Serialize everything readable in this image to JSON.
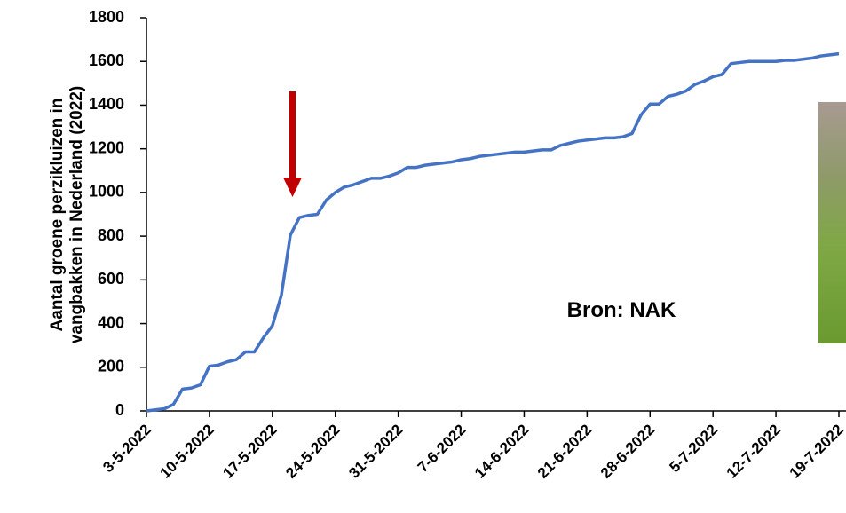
{
  "chart_data": {
    "type": "line",
    "ylabel": [
      "Aantal groene perzikluizen in",
      "vangbakken in Nederland (2022)"
    ],
    "annotation": "Bron: NAK",
    "categories": [
      "3-5-2022",
      null,
      null,
      null,
      null,
      null,
      null,
      "10-5-2022",
      null,
      null,
      null,
      null,
      null,
      null,
      "17-5-2022",
      null,
      null,
      null,
      null,
      null,
      null,
      "24-5-2022",
      null,
      null,
      null,
      null,
      null,
      null,
      "31-5-2022",
      null,
      null,
      null,
      null,
      null,
      null,
      "7-6-2022",
      null,
      null,
      null,
      null,
      null,
      null,
      "14-6-2022",
      null,
      null,
      null,
      null,
      null,
      null,
      "21-6-2022",
      null,
      null,
      null,
      null,
      null,
      null,
      "28-6-2022",
      null,
      null,
      null,
      null,
      null,
      null,
      "5-7-2022",
      null,
      null,
      null,
      null,
      null,
      null,
      "12-7-2022",
      null,
      null,
      null,
      null,
      null,
      null,
      "19-7-2022"
    ],
    "series": [
      {
        "name": "Groene perzikluizen",
        "color": "#4472c4",
        "values": [
          0,
          5,
          10,
          30,
          100,
          105,
          120,
          205,
          210,
          225,
          235,
          270,
          270,
          335,
          390,
          530,
          805,
          885,
          895,
          900,
          965,
          1000,
          1025,
          1035,
          1050,
          1065,
          1065,
          1075,
          1090,
          1115,
          1115,
          1125,
          1130,
          1135,
          1140,
          1150,
          1155,
          1165,
          1170,
          1175,
          1180,
          1185,
          1185,
          1190,
          1195,
          1195,
          1215,
          1225,
          1235,
          1240,
          1245,
          1250,
          1250,
          1255,
          1270,
          1355,
          1405,
          1405,
          1440,
          1450,
          1465,
          1495,
          1510,
          1530,
          1540,
          1590,
          1595,
          1600,
          1600,
          1600,
          1600,
          1605,
          1605,
          1610,
          1615,
          1625,
          1630,
          1635
        ]
      }
    ],
    "ylim": [
      0,
      1800
    ],
    "yticks": [
      0,
      200,
      400,
      600,
      800,
      1000,
      1200,
      1400,
      1600,
      1800
    ]
  }
}
